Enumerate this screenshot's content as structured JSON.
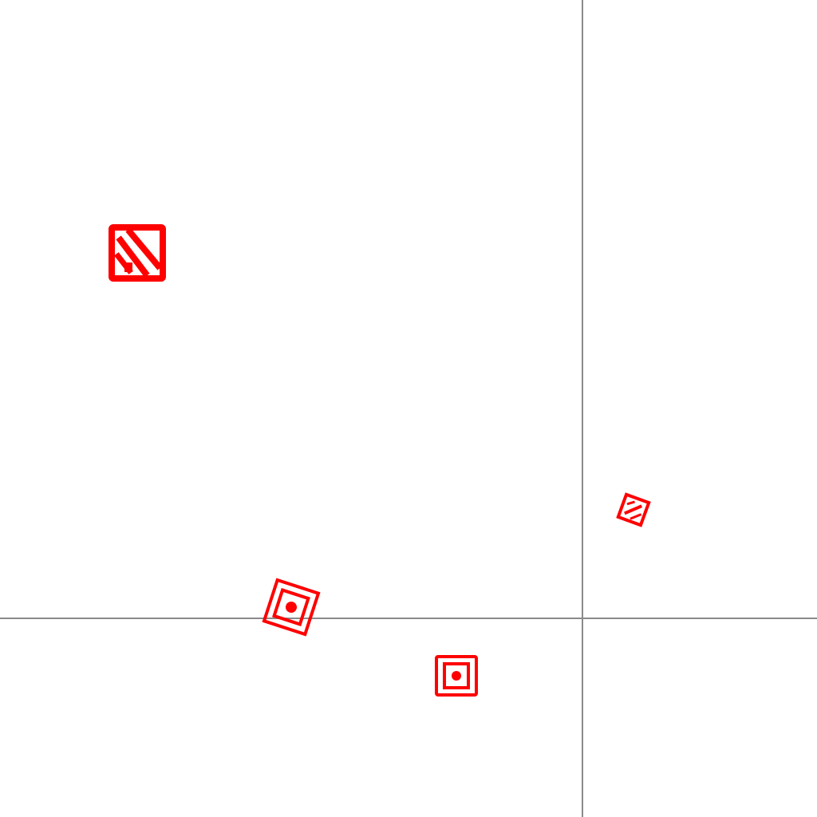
{
  "colors": {
    "background": "#ffffff",
    "guide_line": "#8a8a8a",
    "marker": "#ff0000"
  },
  "guides": [
    {
      "orientation": "vertical",
      "role": "vertical-crosshair-line"
    },
    {
      "orientation": "horizontal",
      "role": "horizontal-crosshair-line"
    }
  ],
  "markers": [
    {
      "icon": "hatched-square-icon",
      "rotation_deg": 0
    },
    {
      "icon": "target-square-icon",
      "rotation_deg": 18
    },
    {
      "icon": "target-square-icon",
      "rotation_deg": 0
    },
    {
      "icon": "hatched-square-icon",
      "rotation_deg": 20
    }
  ]
}
